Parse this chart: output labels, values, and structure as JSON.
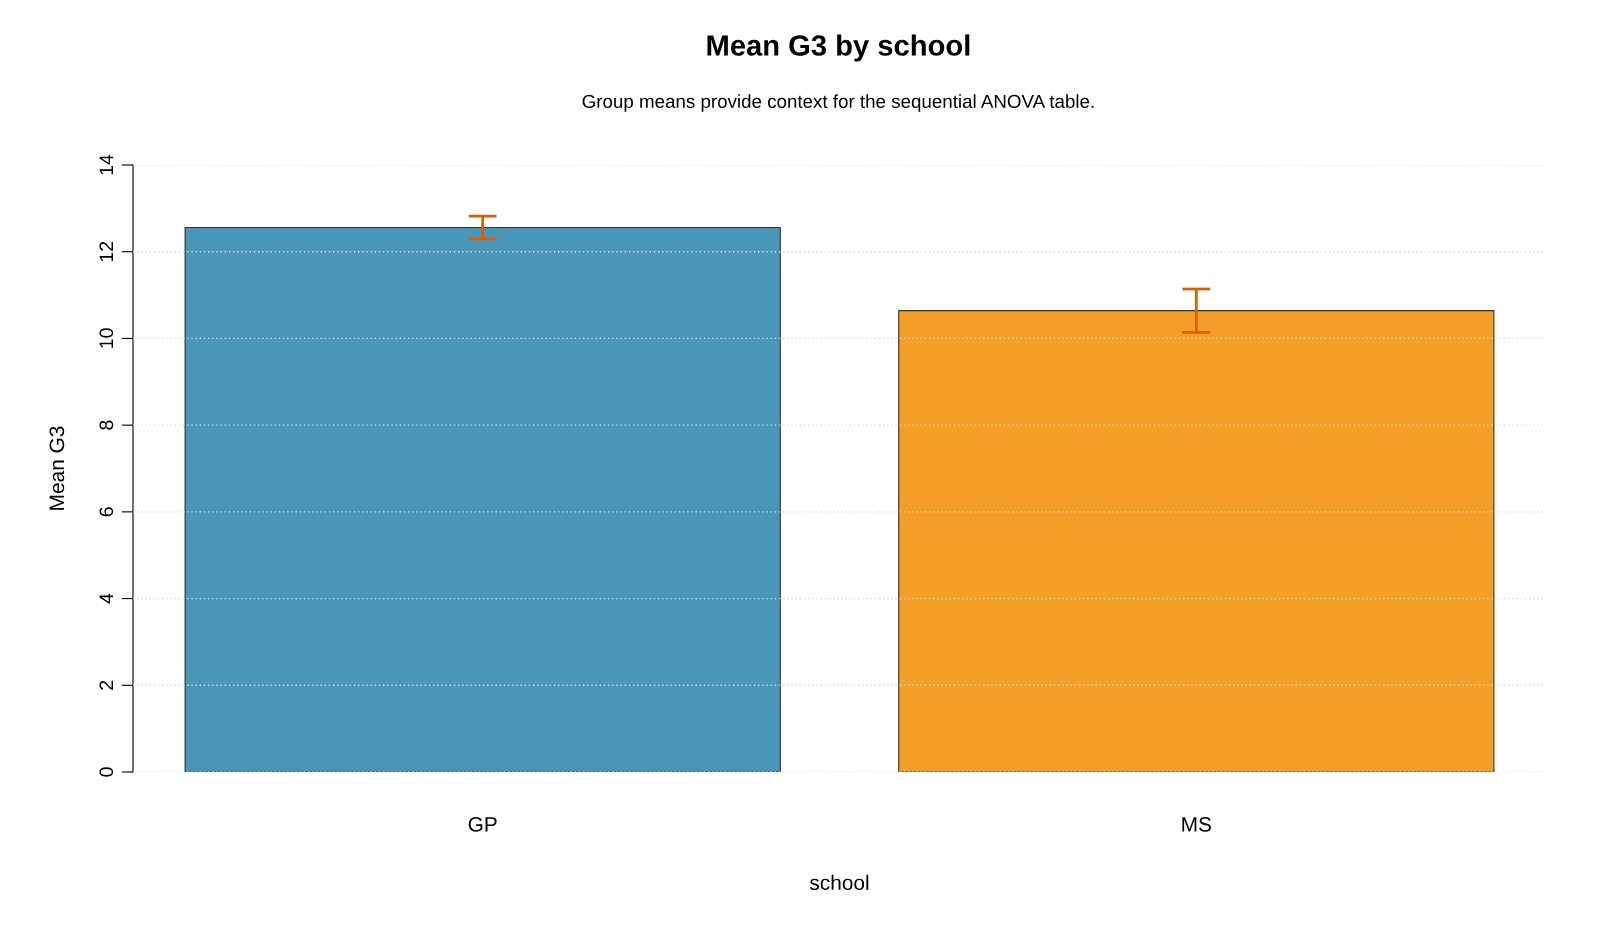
{
  "chart_data": {
    "type": "bar",
    "title": "Mean G3 by school",
    "subtitle": "Group means provide context for the sequential ANOVA table.",
    "xlabel": "school",
    "ylabel": "Mean G3",
    "categories": [
      "GP",
      "MS"
    ],
    "values": [
      12.56,
      10.64
    ],
    "errors": [
      0.26,
      0.5
    ],
    "colors": [
      "#4a96b8",
      "#f39e26"
    ],
    "ylim": [
      0,
      14
    ],
    "yticks": [
      0,
      2,
      4,
      6,
      8,
      10,
      12,
      14
    ],
    "grid": "y"
  }
}
